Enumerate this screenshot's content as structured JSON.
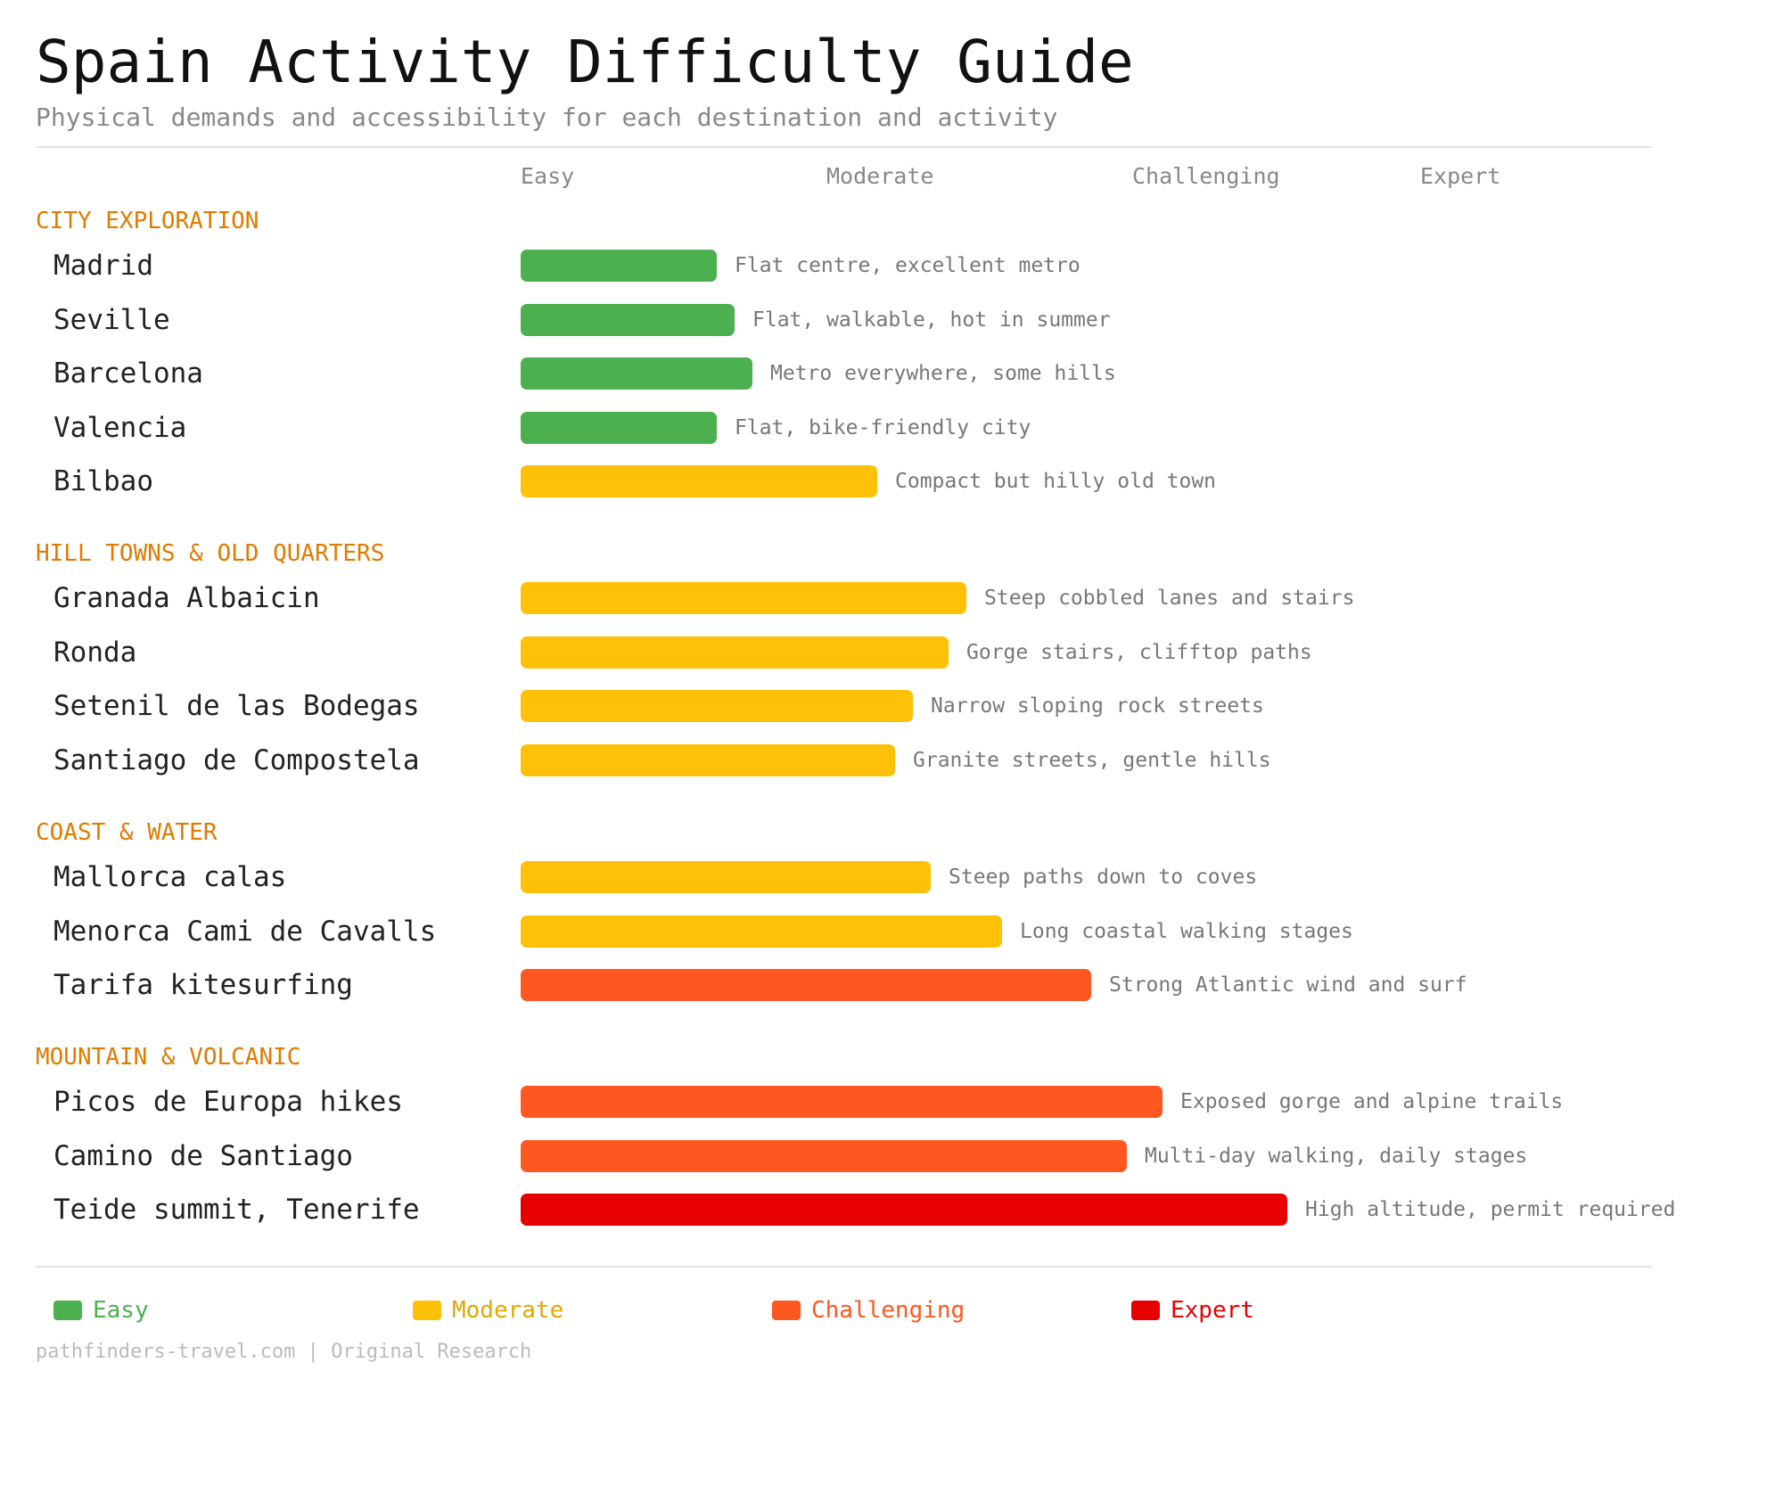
{
  "title": "Spain Activity Difficulty Guide",
  "subtitle": "Physical demands and accessibility for each destination and activity",
  "footer": "pathfinders-travel.com | Original Research",
  "colors": {
    "Easy": "#4caf50",
    "Moderate": "#ffc107",
    "Challenging": "#ff5722",
    "Expert": "#e60000",
    "section": "#e07b00"
  },
  "chart_data": {
    "type": "bar",
    "orientation": "horizontal",
    "xlim": [
      0,
      4
    ],
    "levels": [
      "Easy",
      "Moderate",
      "Challenging",
      "Expert"
    ],
    "legend": [
      "Easy",
      "Moderate",
      "Challenging",
      "Expert"
    ],
    "legend_position": "bottom",
    "grid": false,
    "sections": [
      {
        "name": "CITY EXPLORATION",
        "items": [
          {
            "label": "Madrid",
            "value": 1.1,
            "level": "Easy",
            "note": "Flat centre, excellent metro"
          },
          {
            "label": "Seville",
            "value": 1.2,
            "level": "Easy",
            "note": "Flat, walkable, hot in summer"
          },
          {
            "label": "Barcelona",
            "value": 1.3,
            "level": "Easy",
            "note": "Metro everywhere, some hills"
          },
          {
            "label": "Valencia",
            "value": 1.1,
            "level": "Easy",
            "note": "Flat, bike-friendly city"
          },
          {
            "label": "Bilbao",
            "value": 2.0,
            "level": "Moderate",
            "note": "Compact but hilly old town"
          }
        ]
      },
      {
        "name": "HILL TOWNS & OLD QUARTERS",
        "items": [
          {
            "label": "Granada Albaicin",
            "value": 2.5,
            "level": "Moderate",
            "note": "Steep cobbled lanes and stairs"
          },
          {
            "label": "Ronda",
            "value": 2.4,
            "level": "Moderate",
            "note": "Gorge stairs, clifftop paths"
          },
          {
            "label": "Setenil de las Bodegas",
            "value": 2.2,
            "level": "Moderate",
            "note": "Narrow sloping rock streets"
          },
          {
            "label": "Santiago de Compostela",
            "value": 2.1,
            "level": "Moderate",
            "note": "Granite streets, gentle hills"
          }
        ]
      },
      {
        "name": "COAST & WATER",
        "items": [
          {
            "label": "Mallorca calas",
            "value": 2.3,
            "level": "Moderate",
            "note": "Steep paths down to coves"
          },
          {
            "label": "Menorca Cami de Cavalls",
            "value": 2.7,
            "level": "Moderate",
            "note": "Long coastal walking stages"
          },
          {
            "label": "Tarifa kitesurfing",
            "value": 3.2,
            "level": "Challenging",
            "note": "Strong Atlantic wind and surf"
          }
        ]
      },
      {
        "name": "MOUNTAIN & VOLCANIC",
        "items": [
          {
            "label": "Picos de Europa hikes",
            "value": 3.6,
            "level": "Challenging",
            "note": "Exposed gorge and alpine trails"
          },
          {
            "label": "Camino de Santiago",
            "value": 3.4,
            "level": "Challenging",
            "note": "Multi-day walking, daily stages"
          },
          {
            "label": "Teide summit, Tenerife",
            "value": 4.3,
            "level": "Expert",
            "note": "High altitude, permit required"
          }
        ]
      }
    ]
  }
}
